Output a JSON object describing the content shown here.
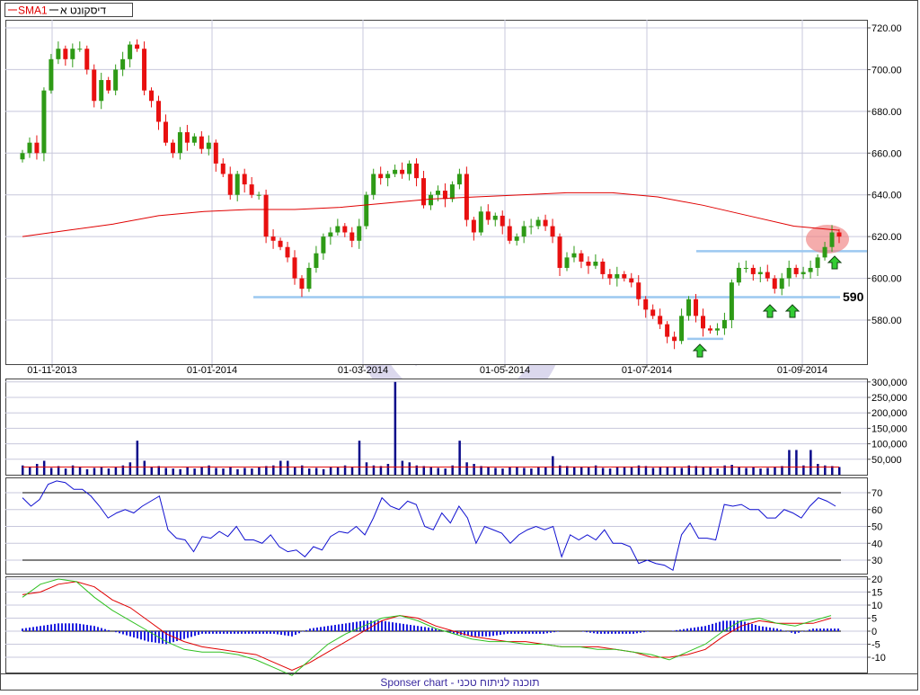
{
  "legend": {
    "sma_label": "SMA1",
    "symbol_label": "דיסקונט א",
    "sma_color": "#e00000",
    "symbol_color": "#000000"
  },
  "footer": {
    "text": "Sponser chart - תוכנה לניתוח טכני",
    "color": "#3a2aa0"
  },
  "annotations": {
    "support_label": "590",
    "highlight_color": "#f08080",
    "arrow_color": "#33cc33",
    "line_color": "#9cc8f0"
  },
  "chart_data": [
    {
      "type": "candlestick",
      "panel": "price",
      "x_ticks": [
        "01-11-2013",
        "01-01-2014",
        "01-03-2014",
        "01-05-2014",
        "01-07-2014",
        "01-09-2014"
      ],
      "y_ticks": [
        "720.00",
        "700.00",
        "680.00",
        "660.00",
        "640.00",
        "620.00",
        "600.00",
        "580.00"
      ],
      "ylim": [
        560,
        724
      ],
      "grid": true,
      "up_color": "#2e9a16",
      "down_color": "#e81010",
      "close": [
        660,
        665,
        660,
        690,
        705,
        710,
        705,
        710,
        710,
        700,
        685,
        695,
        690,
        700,
        705,
        712,
        710,
        690,
        685,
        675,
        665,
        660,
        670,
        665,
        668,
        662,
        665,
        655,
        650,
        640,
        650,
        645,
        640,
        640,
        620,
        618,
        615,
        610,
        600,
        595,
        605,
        612,
        620,
        622,
        625,
        622,
        618,
        625,
        640,
        650,
        648,
        650,
        652,
        650,
        655,
        648,
        635,
        640,
        642,
        638,
        645,
        650,
        628,
        622,
        632,
        628,
        630,
        625,
        618,
        620,
        625,
        625,
        628,
        625,
        620,
        605,
        610,
        612,
        608,
        606,
        608,
        602,
        600,
        602,
        600,
        598,
        590,
        585,
        582,
        578,
        572,
        570,
        582,
        590,
        582,
        576,
        575,
        576,
        580,
        598,
        605,
        605,
        602,
        603,
        600,
        595,
        600,
        605,
        602,
        603,
        605,
        610,
        615,
        622,
        620
      ],
      "sma": {
        "name": "SMA1",
        "values": [
          620,
          623,
          626,
          630,
          632,
          633,
          633,
          634,
          636,
          638,
          639,
          640,
          641,
          641,
          639,
          635,
          630,
          625,
          623
        ]
      },
      "horizontal_lines": [
        613,
        591,
        571
      ]
    },
    {
      "type": "bar",
      "panel": "volume",
      "y_ticks": [
        "300,000",
        "250,000",
        "200,000",
        "150,000",
        "100,000",
        "50,000"
      ],
      "ylim": [
        0,
        300000
      ],
      "values": [
        30000,
        25000,
        35000,
        45000,
        22000,
        28000,
        20000,
        30000,
        25000,
        18000,
        22000,
        26000,
        20000,
        24000,
        30000,
        40000,
        110000,
        45000,
        25000,
        28000,
        22000,
        20000,
        18000,
        24000,
        20000,
        26000,
        30000,
        22000,
        20000,
        25000,
        18000,
        22000,
        20000,
        24000,
        28000,
        30000,
        45000,
        45000,
        25000,
        30000,
        20000,
        22000,
        18000,
        26000,
        24000,
        30000,
        25000,
        110000,
        40000,
        30000,
        28000,
        35000,
        300000,
        45000,
        40000,
        30000,
        28000,
        25000,
        22000,
        20000,
        30000,
        110000,
        40000,
        35000,
        28000,
        25000,
        22000,
        20000,
        24000,
        26000,
        22000,
        20000,
        25000,
        24000,
        60000,
        30000,
        28000,
        26000,
        25000,
        24000,
        30000,
        22000,
        20000,
        25000,
        26000,
        24000,
        30000,
        28000,
        22000,
        25000,
        26000,
        24000,
        22000,
        30000,
        28000,
        25000,
        24000,
        20000,
        30000,
        32000,
        25000,
        22000,
        24000,
        20000,
        22000,
        26000,
        28000,
        80000,
        80000,
        30000,
        80000,
        35000,
        30000,
        28000,
        25000
      ],
      "ma_value": 25000,
      "bar_color": "#0a0a8a"
    },
    {
      "type": "line",
      "panel": "rsi",
      "y_ticks": [
        "70",
        "60",
        "50",
        "40",
        "30"
      ],
      "levels": [
        70,
        30
      ],
      "values": [
        67,
        62,
        66,
        75,
        77,
        76,
        72,
        72,
        68,
        62,
        55,
        58,
        60,
        58,
        62,
        65,
        68,
        48,
        43,
        42,
        35,
        44,
        43,
        47,
        44,
        50,
        42,
        42,
        40,
        45,
        38,
        35,
        36,
        32,
        38,
        36,
        44,
        47,
        46,
        50,
        45,
        55,
        67,
        62,
        60,
        65,
        63,
        50,
        48,
        58,
        52,
        62,
        55,
        40,
        50,
        48,
        46,
        40,
        45,
        48,
        50,
        48,
        50,
        32,
        45,
        42,
        45,
        42,
        48,
        40,
        40,
        38,
        28,
        30,
        28,
        27,
        24,
        45,
        52,
        43,
        43,
        42,
        63,
        62,
        63,
        60,
        60,
        55,
        55,
        60,
        58,
        55,
        62,
        67,
        65,
        62
      ],
      "color": "#1010d0"
    },
    {
      "type": "line",
      "panel": "macd",
      "y_ticks": [
        "20",
        "15",
        "10",
        "5",
        "0",
        "-5",
        "-10"
      ],
      "series": [
        {
          "values": [
            14,
            15,
            18,
            19,
            17,
            12,
            9,
            4,
            -1,
            -4,
            -6,
            -7,
            -8,
            -9,
            -12,
            -15,
            -12,
            -8,
            -4,
            0,
            4,
            6,
            5,
            2,
            0,
            -2,
            -3,
            -4,
            -4,
            -5,
            -6,
            -6,
            -6,
            -7,
            -8,
            -10,
            -10,
            -9,
            -7,
            -2,
            2,
            4,
            3,
            3,
            3,
            5
          ],
          "color": "#e00000"
        },
        {
          "values": [
            13,
            18,
            20,
            19,
            13,
            8,
            4,
            0,
            -4,
            -7,
            -8,
            -8,
            -9,
            -11,
            -14,
            -17,
            -11,
            -5,
            -1,
            2,
            5,
            6,
            4,
            1,
            -1,
            -3,
            -4,
            -4,
            -5,
            -5,
            -6,
            -6,
            -7,
            -7,
            -8,
            -9,
            -11,
            -8,
            -5,
            0,
            4,
            5,
            3,
            2,
            4,
            6
          ],
          "color": "#30c020"
        }
      ],
      "histogram": [
        1,
        2,
        3,
        3,
        2,
        0,
        -2,
        -4,
        -5,
        -3,
        -1,
        -1,
        -1,
        -1,
        -1,
        -2,
        1,
        2,
        3,
        4,
        4,
        3,
        2,
        1,
        -1,
        -2,
        -2,
        -1,
        -1,
        -1,
        0,
        0,
        -1,
        -1,
        -1,
        0,
        0,
        1,
        2,
        4,
        4,
        2,
        1,
        -1,
        1,
        1
      ],
      "histogram_color": "#2020e0"
    }
  ]
}
